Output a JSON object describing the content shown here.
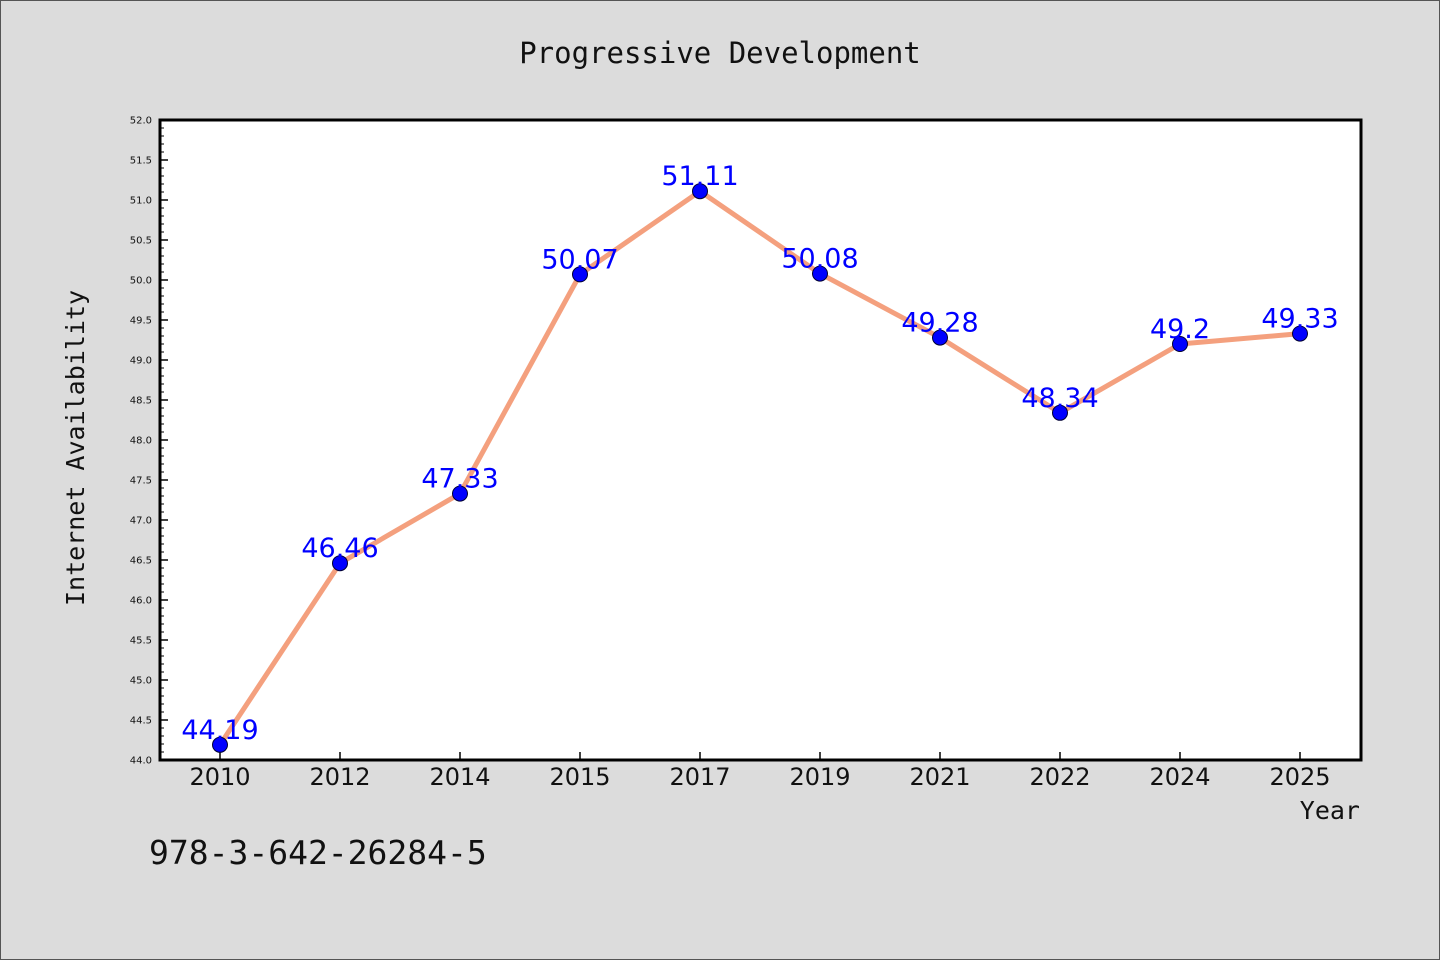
{
  "chart_data": {
    "type": "line",
    "title": "Progressive Development",
    "xlabel": "Year",
    "ylabel": "Internet Availability",
    "categories": [
      "2010",
      "2012",
      "2014",
      "2015",
      "2017",
      "2019",
      "2021",
      "2022",
      "2024",
      "2025"
    ],
    "values": [
      44.19,
      46.46,
      47.33,
      50.07,
      51.11,
      50.08,
      49.28,
      48.34,
      49.2,
      49.33
    ],
    "data_labels": [
      "44.19",
      "46.46",
      "47.33",
      "50.07",
      "51.11",
      "50.08",
      "49.28",
      "48.34",
      "49.2",
      "49.33"
    ],
    "ylim": [
      44.0,
      52.0
    ],
    "yticks": [
      "44.0",
      "44.5",
      "45.0",
      "45.5",
      "46.0",
      "46.5",
      "47.0",
      "47.5",
      "48.0",
      "48.5",
      "49.0",
      "49.5",
      "50.0",
      "50.5",
      "51.0",
      "51.5",
      "52.0"
    ],
    "grid": false,
    "line_color": "#f4a07e",
    "marker_color": "#0000ff",
    "label_color": "#0000ff",
    "background": "#dcdcdc",
    "plot_background": "#ffffff"
  },
  "footer_code": "978-3-642-26284-5"
}
